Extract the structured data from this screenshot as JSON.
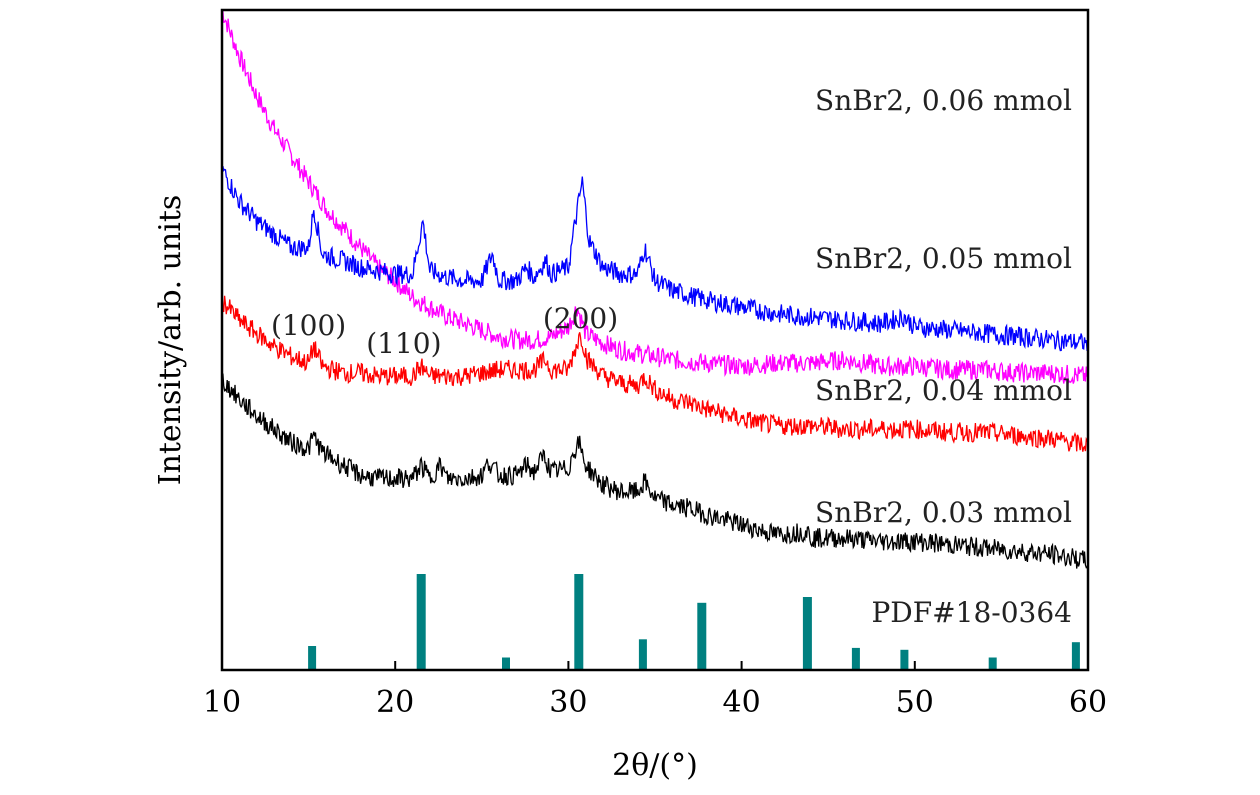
{
  "chart_data": {
    "type": "line",
    "title": "",
    "xlabel": "2θ/(°)",
    "ylabel": "Intensity/arb. units",
    "xlim": [
      10,
      60
    ],
    "x_ticks": [
      "10",
      "20",
      "30",
      "40",
      "50",
      "60"
    ],
    "y_ticks_shown": false,
    "grid": false,
    "series": [
      {
        "name": "SnBr2, 0.06 mmol",
        "color": "#ff00ff",
        "points": [
          [
            10,
            1.0
          ],
          [
            11,
            0.93
          ],
          [
            12,
            0.87
          ],
          [
            13,
            0.82
          ],
          [
            14,
            0.78
          ],
          [
            15,
            0.74
          ],
          [
            16,
            0.7
          ],
          [
            17,
            0.67
          ],
          [
            18,
            0.64
          ],
          [
            19,
            0.61
          ],
          [
            20,
            0.59
          ],
          [
            21,
            0.565
          ],
          [
            22,
            0.55
          ],
          [
            23,
            0.535
          ],
          [
            24,
            0.525
          ],
          [
            25,
            0.515
          ],
          [
            26,
            0.505
          ],
          [
            27,
            0.5
          ],
          [
            28,
            0.5
          ],
          [
            29,
            0.505
          ],
          [
            30,
            0.52
          ],
          [
            30.5,
            0.55
          ],
          [
            31,
            0.51
          ],
          [
            32,
            0.495
          ],
          [
            33,
            0.485
          ],
          [
            34,
            0.48
          ],
          [
            35,
            0.475
          ],
          [
            36,
            0.47
          ],
          [
            38,
            0.465
          ],
          [
            40,
            0.46
          ],
          [
            42,
            0.465
          ],
          [
            44,
            0.465
          ],
          [
            46,
            0.47
          ],
          [
            48,
            0.46
          ],
          [
            50,
            0.46
          ],
          [
            52,
            0.455
          ],
          [
            54,
            0.455
          ],
          [
            56,
            0.45
          ],
          [
            58,
            0.45
          ],
          [
            60,
            0.445
          ]
        ]
      },
      {
        "name": "SnBr2, 0.05 mmol",
        "color": "#0000ff",
        "points": [
          [
            10,
            0.76
          ],
          [
            11,
            0.71
          ],
          [
            12,
            0.68
          ],
          [
            13,
            0.66
          ],
          [
            14,
            0.64
          ],
          [
            15,
            0.64
          ],
          [
            15.3,
            0.7
          ],
          [
            15.8,
            0.63
          ],
          [
            17,
            0.62
          ],
          [
            18,
            0.61
          ],
          [
            19,
            0.605
          ],
          [
            20,
            0.6
          ],
          [
            21,
            0.6
          ],
          [
            21.6,
            0.68
          ],
          [
            22,
            0.605
          ],
          [
            23,
            0.595
          ],
          [
            24,
            0.59
          ],
          [
            25,
            0.59
          ],
          [
            25.6,
            0.63
          ],
          [
            26,
            0.59
          ],
          [
            27,
            0.59
          ],
          [
            27.6,
            0.61
          ],
          [
            28,
            0.595
          ],
          [
            28.7,
            0.62
          ],
          [
            29,
            0.6
          ],
          [
            30,
            0.61
          ],
          [
            30.4,
            0.68
          ],
          [
            30.8,
            0.74
          ],
          [
            31.2,
            0.65
          ],
          [
            32,
            0.61
          ],
          [
            33,
            0.6
          ],
          [
            34,
            0.6
          ],
          [
            34.4,
            0.64
          ],
          [
            35,
            0.59
          ],
          [
            36,
            0.575
          ],
          [
            38,
            0.56
          ],
          [
            40,
            0.55
          ],
          [
            42,
            0.54
          ],
          [
            44,
            0.535
          ],
          [
            46,
            0.53
          ],
          [
            48,
            0.525
          ],
          [
            49.4,
            0.535
          ],
          [
            50,
            0.52
          ],
          [
            52,
            0.515
          ],
          [
            54,
            0.51
          ],
          [
            56,
            0.505
          ],
          [
            58,
            0.5
          ],
          [
            60,
            0.495
          ]
        ]
      },
      {
        "name": "SnBr2, 0.04 mmol",
        "color": "#ff0000",
        "points": [
          [
            10,
            0.56
          ],
          [
            11,
            0.53
          ],
          [
            12,
            0.51
          ],
          [
            13,
            0.49
          ],
          [
            14,
            0.475
          ],
          [
            15,
            0.465
          ],
          [
            15.3,
            0.49
          ],
          [
            15.8,
            0.46
          ],
          [
            17,
            0.45
          ],
          [
            18,
            0.45
          ],
          [
            19,
            0.445
          ],
          [
            20,
            0.445
          ],
          [
            21,
            0.445
          ],
          [
            21.5,
            0.46
          ],
          [
            22,
            0.445
          ],
          [
            23,
            0.445
          ],
          [
            24,
            0.445
          ],
          [
            25,
            0.45
          ],
          [
            26,
            0.455
          ],
          [
            27,
            0.455
          ],
          [
            28,
            0.455
          ],
          [
            28.7,
            0.47
          ],
          [
            29,
            0.455
          ],
          [
            30,
            0.455
          ],
          [
            30.3,
            0.48
          ],
          [
            30.7,
            0.51
          ],
          [
            31.1,
            0.47
          ],
          [
            32,
            0.445
          ],
          [
            33,
            0.435
          ],
          [
            34,
            0.43
          ],
          [
            34.4,
            0.445
          ],
          [
            35,
            0.425
          ],
          [
            36,
            0.41
          ],
          [
            37,
            0.405
          ],
          [
            38,
            0.395
          ],
          [
            40,
            0.38
          ],
          [
            42,
            0.37
          ],
          [
            44,
            0.37
          ],
          [
            46,
            0.365
          ],
          [
            48,
            0.365
          ],
          [
            50,
            0.365
          ],
          [
            52,
            0.36
          ],
          [
            54,
            0.36
          ],
          [
            56,
            0.355
          ],
          [
            58,
            0.35
          ],
          [
            60,
            0.34
          ]
        ]
      },
      {
        "name": "SnBr2, 0.03 mmol",
        "color": "#000000",
        "points": [
          [
            10,
            0.44
          ],
          [
            11,
            0.41
          ],
          [
            12,
            0.385
          ],
          [
            13,
            0.365
          ],
          [
            14,
            0.345
          ],
          [
            15,
            0.335
          ],
          [
            15.3,
            0.355
          ],
          [
            15.8,
            0.33
          ],
          [
            17,
            0.31
          ],
          [
            18,
            0.295
          ],
          [
            19,
            0.29
          ],
          [
            20,
            0.29
          ],
          [
            21,
            0.29
          ],
          [
            21.5,
            0.31
          ],
          [
            22,
            0.29
          ],
          [
            22.6,
            0.31
          ],
          [
            23,
            0.29
          ],
          [
            24,
            0.29
          ],
          [
            25,
            0.295
          ],
          [
            25.4,
            0.315
          ],
          [
            26,
            0.295
          ],
          [
            27,
            0.295
          ],
          [
            27.6,
            0.31
          ],
          [
            28,
            0.3
          ],
          [
            28.6,
            0.325
          ],
          [
            29,
            0.3
          ],
          [
            30,
            0.305
          ],
          [
            30.3,
            0.33
          ],
          [
            30.6,
            0.345
          ],
          [
            31,
            0.31
          ],
          [
            32,
            0.28
          ],
          [
            33,
            0.27
          ],
          [
            34,
            0.27
          ],
          [
            34.4,
            0.285
          ],
          [
            35,
            0.26
          ],
          [
            36,
            0.25
          ],
          [
            37,
            0.245
          ],
          [
            38,
            0.235
          ],
          [
            40,
            0.22
          ],
          [
            42,
            0.205
          ],
          [
            43.8,
            0.21
          ],
          [
            44,
            0.2
          ],
          [
            46,
            0.2
          ],
          [
            48,
            0.195
          ],
          [
            50,
            0.195
          ],
          [
            52,
            0.19
          ],
          [
            54,
            0.185
          ],
          [
            56,
            0.18
          ],
          [
            58,
            0.175
          ],
          [
            60,
            0.165
          ]
        ]
      }
    ],
    "reference": {
      "name": "PDF#18-0364",
      "color": "#008080",
      "peaks": [
        {
          "x": 15.2,
          "intensity": 0.25
        },
        {
          "x": 21.5,
          "intensity": 1.0
        },
        {
          "x": 26.4,
          "intensity": 0.13
        },
        {
          "x": 30.6,
          "intensity": 1.0
        },
        {
          "x": 34.3,
          "intensity": 0.32
        },
        {
          "x": 37.7,
          "intensity": 0.7
        },
        {
          "x": 43.8,
          "intensity": 0.76
        },
        {
          "x": 46.6,
          "intensity": 0.23
        },
        {
          "x": 49.4,
          "intensity": 0.21
        },
        {
          "x": 54.5,
          "intensity": 0.13
        },
        {
          "x": 59.3,
          "intensity": 0.29
        }
      ]
    },
    "annotations": [
      {
        "text": "(100)",
        "x": 15.0
      },
      {
        "text": "(110)",
        "x": 20.5
      },
      {
        "text": "(200)",
        "x": 30.7
      }
    ]
  }
}
